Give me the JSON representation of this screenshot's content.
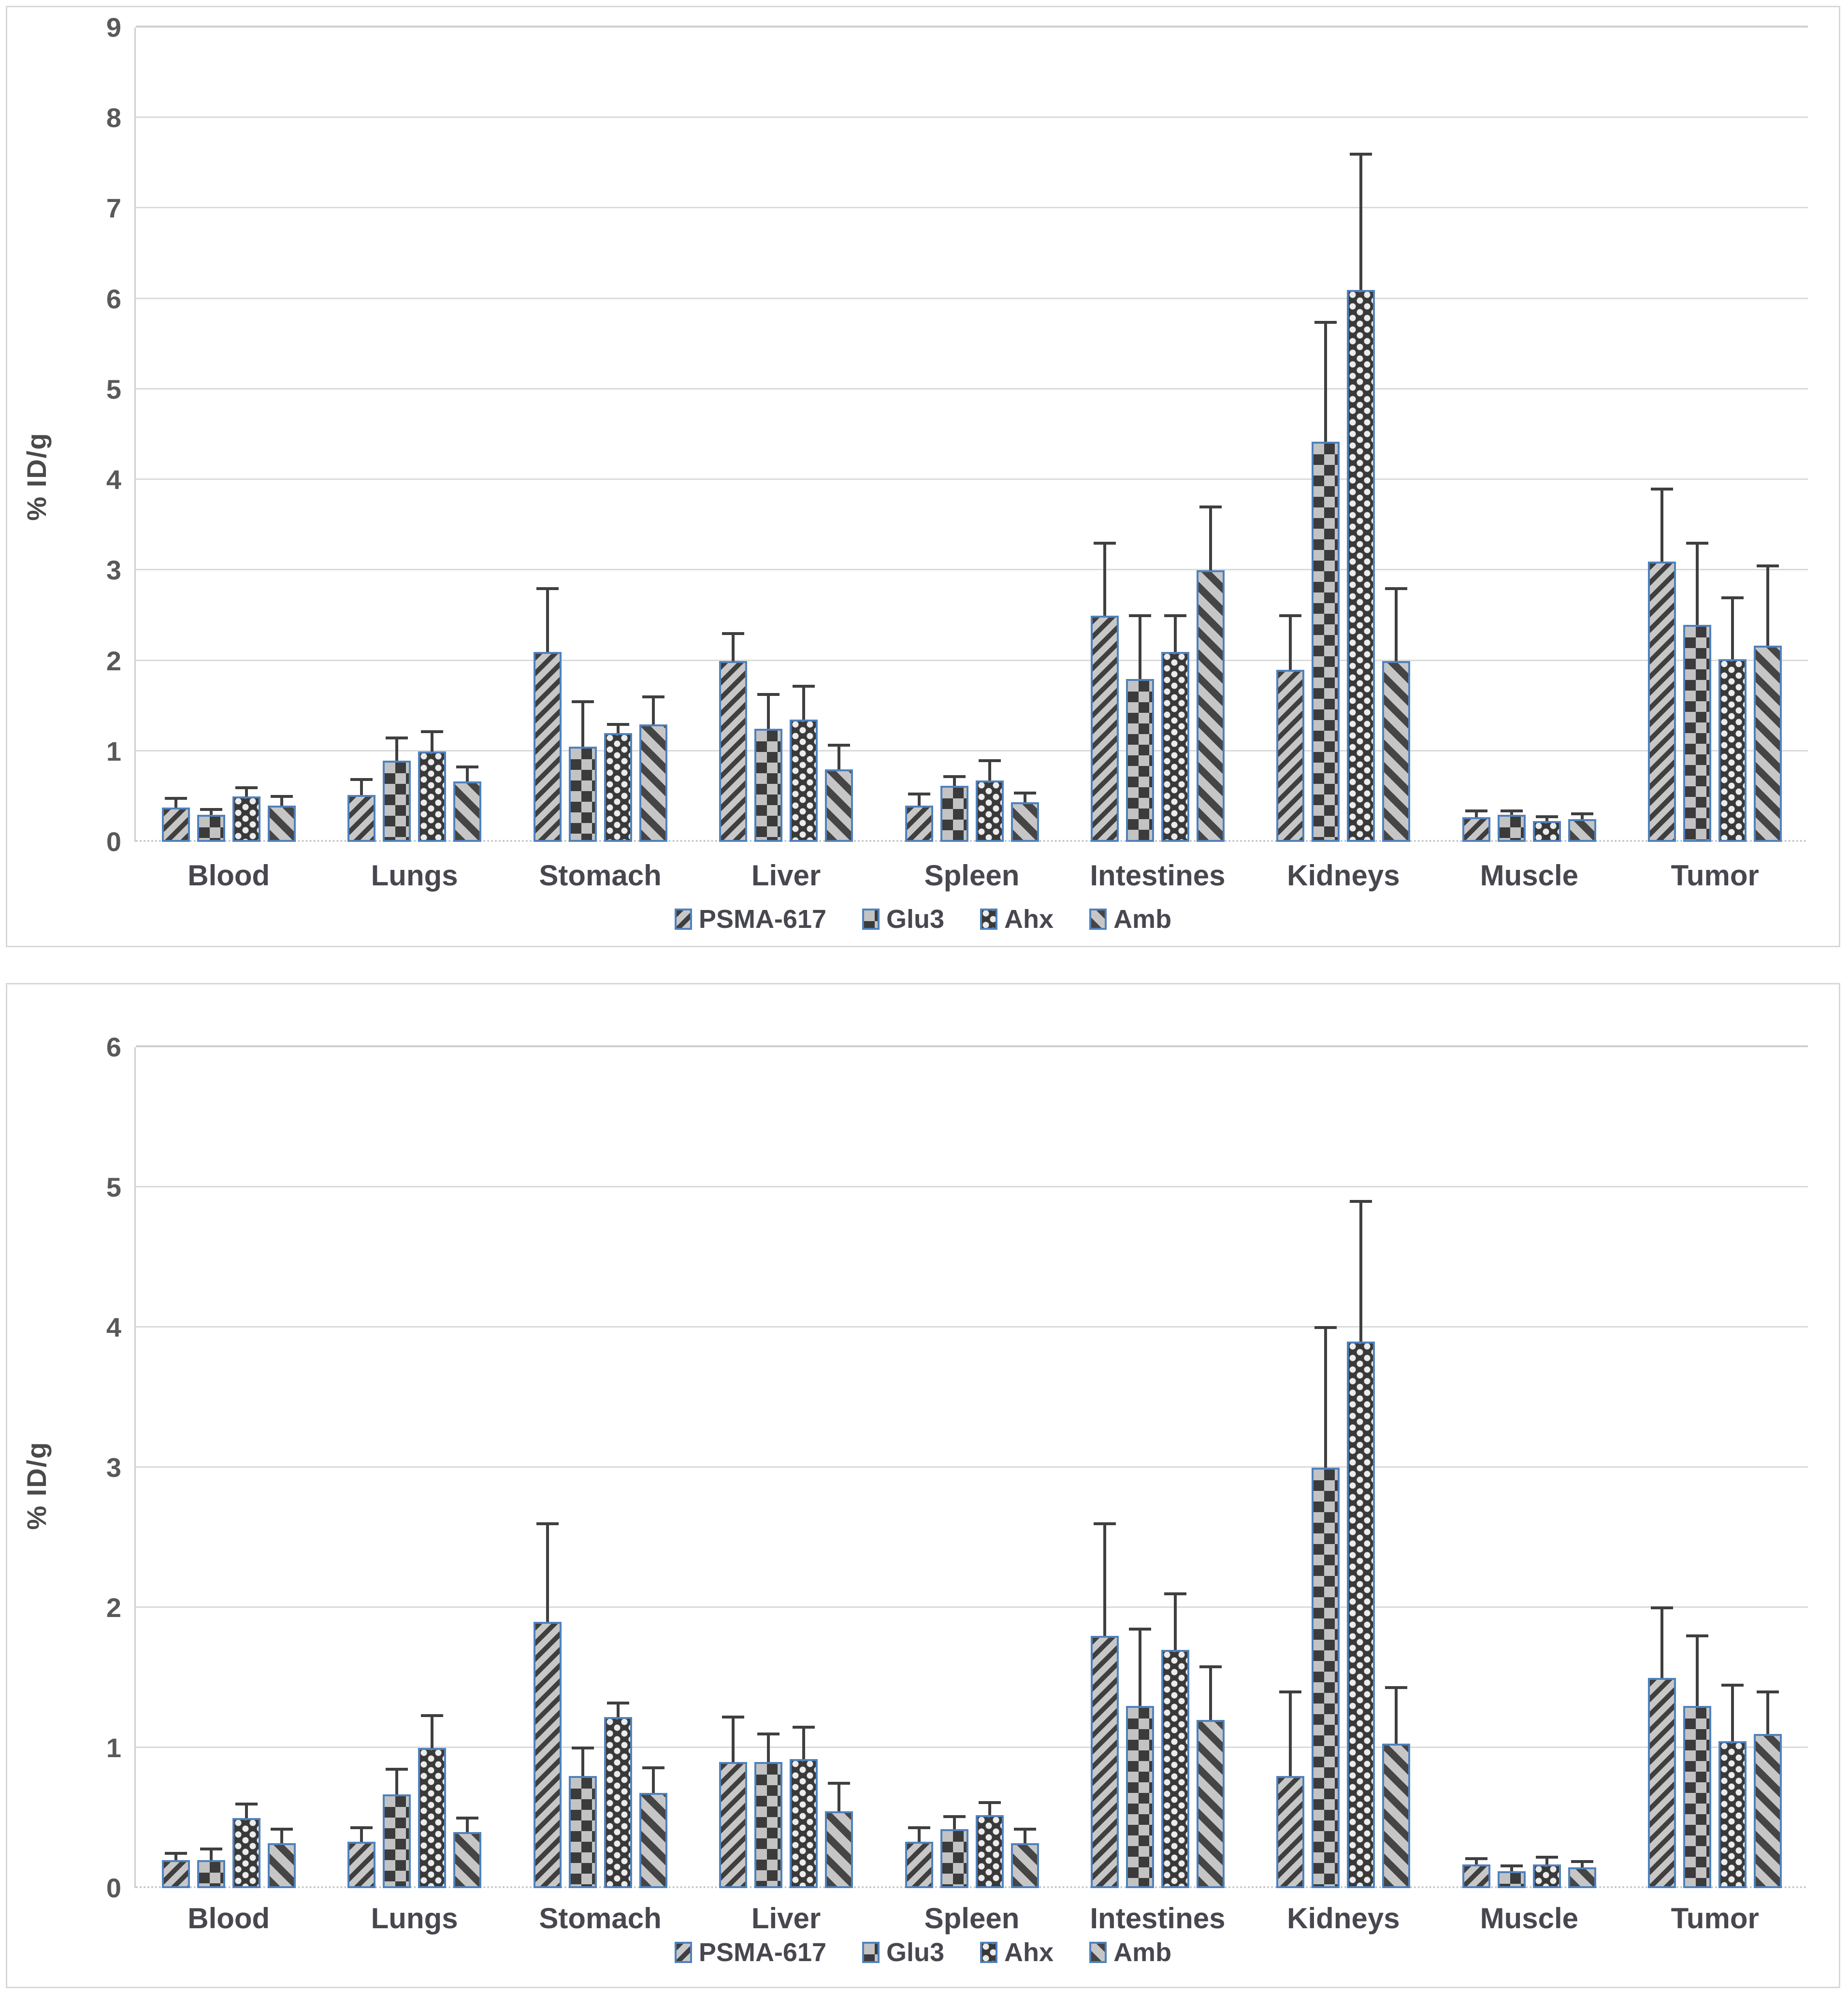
{
  "figure": {
    "description_visible_text_only": "",
    "y_axis_title": "% ID/g"
  },
  "colors": {
    "bar_outline_blue": "#4F81BD",
    "pattern_dark": "#3F3F3F",
    "pattern_light": "#C7C7C7",
    "gridline": "#DADADA",
    "axis_text": "#595959",
    "category_text": "#47474F",
    "panel_border": "#D8D8D8"
  },
  "chart_data": [
    {
      "type": "bar",
      "title": "",
      "xlabel": "",
      "ylabel": "% ID/g",
      "ylim": [
        0,
        9
      ],
      "ytick_step": 1,
      "grid": true,
      "legend_position": "bottom",
      "categories": [
        "Blood",
        "Lungs",
        "Stomach",
        "Liver",
        "Spleen",
        "Intestines",
        "Kidneys",
        "Muscle",
        "Tumor"
      ],
      "series": [
        {
          "name": "PSMA-617",
          "pattern": "thin-diagonal-stripes-up",
          "values": [
            0.38,
            0.52,
            2.1,
            2.0,
            0.4,
            2.5,
            1.9,
            0.27,
            3.1
          ],
          "errors": [
            0.1,
            0.17,
            0.7,
            0.3,
            0.13,
            0.8,
            0.6,
            0.07,
            0.8
          ]
        },
        {
          "name": "Glu3",
          "pattern": "checkerboard",
          "values": [
            0.3,
            0.9,
            1.05,
            1.25,
            0.62,
            1.8,
            4.42,
            0.3,
            2.4
          ],
          "errors": [
            0.06,
            0.25,
            0.5,
            0.38,
            0.1,
            0.7,
            1.32,
            0.04,
            0.9
          ]
        },
        {
          "name": "Ahx",
          "pattern": "dark-dot-grid",
          "values": [
            0.5,
            1.0,
            1.2,
            1.35,
            0.68,
            2.1,
            6.1,
            0.23,
            2.02
          ],
          "errors": [
            0.1,
            0.22,
            0.1,
            0.37,
            0.22,
            0.4,
            1.5,
            0.05,
            0.68
          ]
        },
        {
          "name": "Amb",
          "pattern": "wide-diagonal-stripes-down",
          "values": [
            0.4,
            0.67,
            1.3,
            0.8,
            0.44,
            3.0,
            2.0,
            0.25,
            2.17
          ],
          "errors": [
            0.1,
            0.16,
            0.3,
            0.27,
            0.1,
            0.7,
            0.8,
            0.06,
            0.88
          ]
        }
      ]
    },
    {
      "type": "bar",
      "title": "",
      "xlabel": "",
      "ylabel": "% ID/g",
      "ylim": [
        0,
        6
      ],
      "ytick_step": 1,
      "grid": true,
      "legend_position": "bottom",
      "categories": [
        "Blood",
        "Lungs",
        "Stomach",
        "Liver",
        "Spleen",
        "Intestines",
        "Kidneys",
        "Muscle",
        "Tumor"
      ],
      "series": [
        {
          "name": "PSMA-617",
          "pattern": "thin-diagonal-stripes-up",
          "values": [
            0.2,
            0.33,
            1.9,
            0.9,
            0.33,
            1.8,
            0.8,
            0.17,
            1.5
          ],
          "errors": [
            0.05,
            0.1,
            0.7,
            0.32,
            0.1,
            0.8,
            0.6,
            0.04,
            0.5
          ]
        },
        {
          "name": "Glu3",
          "pattern": "checkerboard",
          "values": [
            0.2,
            0.67,
            0.8,
            0.9,
            0.42,
            1.3,
            3.0,
            0.12,
            1.3
          ],
          "errors": [
            0.08,
            0.18,
            0.2,
            0.2,
            0.09,
            0.55,
            1.0,
            0.04,
            0.5
          ]
        },
        {
          "name": "Ahx",
          "pattern": "dark-dot-grid",
          "values": [
            0.5,
            1.0,
            1.22,
            0.92,
            0.52,
            1.7,
            3.9,
            0.17,
            1.05
          ],
          "errors": [
            0.1,
            0.23,
            0.1,
            0.23,
            0.09,
            0.4,
            1.0,
            0.05,
            0.4
          ]
        },
        {
          "name": "Amb",
          "pattern": "wide-diagonal-stripes-down",
          "values": [
            0.32,
            0.4,
            0.68,
            0.55,
            0.32,
            1.2,
            1.03,
            0.15,
            1.1
          ],
          "errors": [
            0.1,
            0.1,
            0.18,
            0.2,
            0.1,
            0.38,
            0.4,
            0.04,
            0.3
          ]
        }
      ]
    }
  ]
}
